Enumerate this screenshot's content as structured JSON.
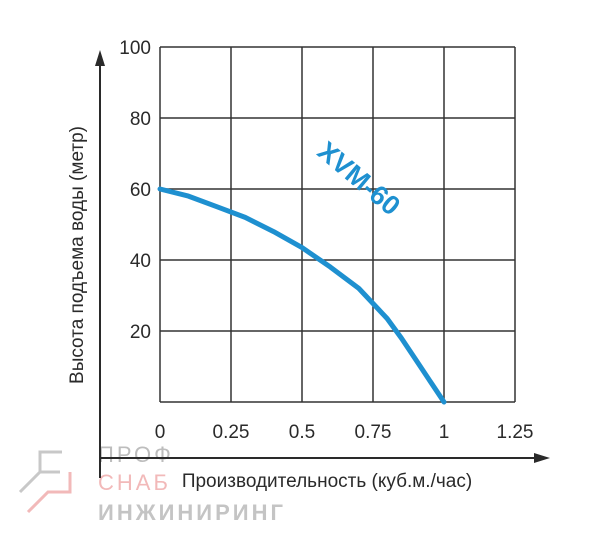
{
  "chart_data": {
    "type": "line",
    "title": "",
    "xlabel": "Производительность (куб.м./час)",
    "ylabel": "Высота подъема воды (метр)",
    "xlim": [
      0,
      1.25
    ],
    "ylim": [
      0,
      100
    ],
    "x_ticks": [
      "0",
      "0.25",
      "0.5",
      "0.75",
      "1",
      "1.25"
    ],
    "y_ticks": [
      "100",
      "80",
      "60",
      "40",
      "20"
    ],
    "grid": true,
    "series": [
      {
        "name": "XVM-60",
        "color": "#1e90d0",
        "x": [
          0,
          0.1,
          0.2,
          0.3,
          0.4,
          0.5,
          0.6,
          0.7,
          0.8,
          0.85,
          0.9,
          0.95,
          1.0
        ],
        "y": [
          60,
          58,
          55,
          52,
          48,
          43.5,
          38,
          32,
          23.5,
          18,
          12,
          6,
          0
        ]
      }
    ]
  },
  "watermark": {
    "line1": "ПРОФ",
    "line2": "СНАБ",
    "line3": "ИНЖИНИРИНГ",
    "color_accent": "#e53935",
    "color_gray": "#9e9e9e"
  }
}
